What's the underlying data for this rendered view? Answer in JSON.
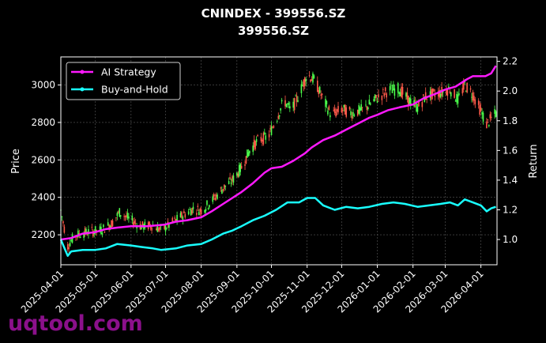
{
  "chart_data": {
    "type": "candlestick-line",
    "title": "CNINDEX - 399556.SZ",
    "subtitle": "399556.SZ",
    "ylabel_left": "Price",
    "ylabel_right": "Return",
    "xlim": [
      "2025-04-01",
      "2026-04-15"
    ],
    "ylim_left": [
      2040,
      3150
    ],
    "ylim_right": [
      0.83,
      2.23
    ],
    "x_ticks": [
      "2025-04-01",
      "2025-05-01",
      "2025-06-01",
      "2025-07-01",
      "2025-08-01",
      "2025-09-01",
      "2025-10-01",
      "2025-11-01",
      "2025-12-01",
      "2026-01-01",
      "2026-02-01",
      "2026-03-01",
      "2026-04-01"
    ],
    "y_ticks_left": [
      2200,
      2400,
      2600,
      2800,
      3000
    ],
    "y_ticks_right": [
      1.0,
      1.2,
      1.4,
      1.6,
      1.8,
      2.0,
      2.2
    ],
    "y_ticks_right_labels": [
      "1.0",
      "1.2",
      "1.4",
      "1.6",
      "1.8",
      "2.0",
      "2.2"
    ],
    "grid": true,
    "legend_position": "top-left",
    "up_color": "#4cff4c",
    "down_color": "#ff5a4a",
    "price_points": [
      [
        "2025-04-01",
        2330
      ],
      [
        "2025-04-07",
        2140
      ],
      [
        "2025-04-10",
        2170
      ],
      [
        "2025-04-15",
        2200
      ],
      [
        "2025-04-25",
        2215
      ],
      [
        "2025-05-06",
        2225
      ],
      [
        "2025-05-15",
        2260
      ],
      [
        "2025-05-22",
        2320
      ],
      [
        "2025-06-03",
        2270
      ],
      [
        "2025-06-10",
        2245
      ],
      [
        "2025-06-20",
        2250
      ],
      [
        "2025-06-27",
        2225
      ],
      [
        "2025-07-04",
        2250
      ],
      [
        "2025-07-15",
        2300
      ],
      [
        "2025-07-25",
        2340
      ],
      [
        "2025-08-01",
        2330
      ],
      [
        "2025-08-10",
        2380
      ],
      [
        "2025-08-20",
        2450
      ],
      [
        "2025-08-28",
        2490
      ],
      [
        "2025-09-05",
        2560
      ],
      [
        "2025-09-12",
        2650
      ],
      [
        "2025-09-20",
        2710
      ],
      [
        "2025-09-28",
        2720
      ],
      [
        "2025-10-06",
        2830
      ],
      [
        "2025-10-12",
        2920
      ],
      [
        "2025-10-18",
        2860
      ],
      [
        "2025-10-25",
        2950
      ],
      [
        "2025-11-01",
        3060
      ],
      [
        "2025-11-08",
        3020
      ],
      [
        "2025-11-15",
        2920
      ],
      [
        "2025-11-22",
        2840
      ],
      [
        "2025-12-01",
        2870
      ],
      [
        "2025-12-10",
        2850
      ],
      [
        "2025-12-20",
        2870
      ],
      [
        "2026-01-01",
        2930
      ],
      [
        "2026-01-10",
        2970
      ],
      [
        "2026-01-20",
        2980
      ],
      [
        "2026-01-28",
        2920
      ],
      [
        "2026-02-05",
        2880
      ],
      [
        "2026-02-12",
        2940
      ],
      [
        "2026-02-25",
        2960
      ],
      [
        "2026-03-05",
        2980
      ],
      [
        "2026-03-12",
        2920
      ],
      [
        "2026-03-18",
        3000
      ],
      [
        "2026-03-25",
        2950
      ],
      [
        "2026-04-01",
        2860
      ],
      [
        "2026-04-06",
        2790
      ],
      [
        "2026-04-10",
        2820
      ],
      [
        "2026-04-14",
        2850
      ]
    ],
    "series": [
      {
        "name": "AI Strategy",
        "color": "#ff19ff",
        "points": [
          [
            "2025-04-01",
            1.0
          ],
          [
            "2025-04-10",
            1.01
          ],
          [
            "2025-04-20",
            1.04
          ],
          [
            "2025-05-01",
            1.05
          ],
          [
            "2025-05-10",
            1.07
          ],
          [
            "2025-05-20",
            1.08
          ],
          [
            "2025-06-01",
            1.09
          ],
          [
            "2025-06-15",
            1.09
          ],
          [
            "2025-06-30",
            1.1
          ],
          [
            "2025-07-10",
            1.12
          ],
          [
            "2025-07-20",
            1.13
          ],
          [
            "2025-08-01",
            1.15
          ],
          [
            "2025-08-10",
            1.19
          ],
          [
            "2025-08-20",
            1.24
          ],
          [
            "2025-08-28",
            1.28
          ],
          [
            "2025-09-05",
            1.32
          ],
          [
            "2025-09-15",
            1.38
          ],
          [
            "2025-09-25",
            1.45
          ],
          [
            "2025-10-01",
            1.48
          ],
          [
            "2025-10-10",
            1.49
          ],
          [
            "2025-10-20",
            1.53
          ],
          [
            "2025-10-30",
            1.58
          ],
          [
            "2025-11-05",
            1.62
          ],
          [
            "2025-11-15",
            1.67
          ],
          [
            "2025-11-25",
            1.7
          ],
          [
            "2025-12-05",
            1.74
          ],
          [
            "2025-12-15",
            1.78
          ],
          [
            "2025-12-25",
            1.82
          ],
          [
            "2026-01-01",
            1.84
          ],
          [
            "2026-01-10",
            1.87
          ],
          [
            "2026-01-20",
            1.89
          ],
          [
            "2026-02-01",
            1.91
          ],
          [
            "2026-02-10",
            1.95
          ],
          [
            "2026-02-20",
            1.98
          ],
          [
            "2026-03-01",
            2.01
          ],
          [
            "2026-03-10",
            2.03
          ],
          [
            "2026-03-20",
            2.08
          ],
          [
            "2026-03-25",
            2.1
          ],
          [
            "2026-04-05",
            2.1
          ],
          [
            "2026-04-10",
            2.12
          ],
          [
            "2026-04-14",
            2.17
          ]
        ]
      },
      {
        "name": "Buy-and-Hold",
        "color": "#19ffff",
        "points": [
          [
            "2025-04-01",
            1.0
          ],
          [
            "2025-04-07",
            0.89
          ],
          [
            "2025-04-10",
            0.92
          ],
          [
            "2025-04-20",
            0.93
          ],
          [
            "2025-05-01",
            0.93
          ],
          [
            "2025-05-10",
            0.94
          ],
          [
            "2025-05-20",
            0.97
          ],
          [
            "2025-06-01",
            0.96
          ],
          [
            "2025-06-10",
            0.95
          ],
          [
            "2025-06-20",
            0.94
          ],
          [
            "2025-06-27",
            0.93
          ],
          [
            "2025-07-10",
            0.94
          ],
          [
            "2025-07-20",
            0.96
          ],
          [
            "2025-08-01",
            0.97
          ],
          [
            "2025-08-10",
            1.0
          ],
          [
            "2025-08-20",
            1.04
          ],
          [
            "2025-08-28",
            1.06
          ],
          [
            "2025-09-05",
            1.09
          ],
          [
            "2025-09-15",
            1.13
          ],
          [
            "2025-09-25",
            1.16
          ],
          [
            "2025-10-05",
            1.2
          ],
          [
            "2025-10-15",
            1.25
          ],
          [
            "2025-10-25",
            1.25
          ],
          [
            "2025-11-01",
            1.28
          ],
          [
            "2025-11-08",
            1.28
          ],
          [
            "2025-11-15",
            1.23
          ],
          [
            "2025-11-25",
            1.2
          ],
          [
            "2025-12-05",
            1.22
          ],
          [
            "2025-12-15",
            1.21
          ],
          [
            "2025-12-25",
            1.22
          ],
          [
            "2026-01-05",
            1.24
          ],
          [
            "2026-01-15",
            1.25
          ],
          [
            "2026-01-25",
            1.24
          ],
          [
            "2026-02-05",
            1.22
          ],
          [
            "2026-02-15",
            1.23
          ],
          [
            "2026-02-25",
            1.24
          ],
          [
            "2026-03-05",
            1.25
          ],
          [
            "2026-03-12",
            1.23
          ],
          [
            "2026-03-18",
            1.27
          ],
          [
            "2026-03-25",
            1.25
          ],
          [
            "2026-04-01",
            1.23
          ],
          [
            "2026-04-06",
            1.19
          ],
          [
            "2026-04-10",
            1.21
          ],
          [
            "2026-04-14",
            1.22
          ]
        ]
      }
    ]
  },
  "watermark": "uqtool.com"
}
